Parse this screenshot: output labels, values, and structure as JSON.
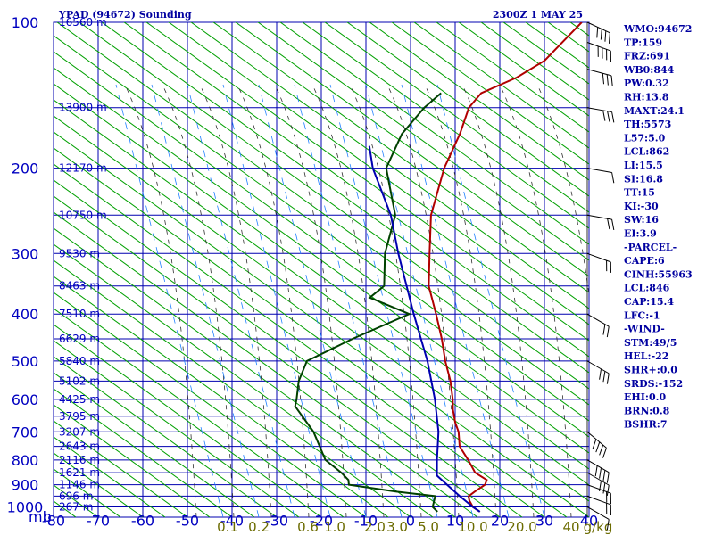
{
  "header": {
    "title": "YPAD (94672) Sounding",
    "datetime": "2300Z  1 MAY 25"
  },
  "chart_data": {
    "type": "line",
    "title": "YPAD (94672) Sounding",
    "yaxis": {
      "unit_label": "mb",
      "pressure_levels": [
        100,
        200,
        300,
        400,
        500,
        600,
        700,
        800,
        900,
        1000
      ],
      "scale": "log",
      "range": [
        100,
        1050
      ]
    },
    "xaxis": {
      "ticks": [
        -80,
        -70,
        -60,
        -50,
        -40,
        -30,
        -20,
        -10,
        0,
        10,
        20,
        30,
        40
      ],
      "range": [
        -80,
        40
      ]
    },
    "height_labels": [
      {
        "label": "16560 m",
        "p": 100
      },
      {
        "label": "13900 m",
        "p": 150
      },
      {
        "label": "12170 m",
        "p": 200
      },
      {
        "label": "10750 m",
        "p": 250
      },
      {
        "label": "9530 m",
        "p": 300
      },
      {
        "label": "8463 m",
        "p": 350
      },
      {
        "label": "7510 m",
        "p": 400
      },
      {
        "label": "6629 m",
        "p": 450
      },
      {
        "label": "5840 m",
        "p": 500
      },
      {
        "label": "5102 m",
        "p": 550
      },
      {
        "label": "4425 m",
        "p": 600
      },
      {
        "label": "3795 m",
        "p": 650
      },
      {
        "label": "3207 m",
        "p": 700
      },
      {
        "label": "2643 m",
        "p": 750
      },
      {
        "label": "2116 m",
        "p": 800
      },
      {
        "label": "1621 m",
        "p": 850
      },
      {
        "label": "1146 m",
        "p": 900
      },
      {
        "label": "696 m",
        "p": 950
      },
      {
        "label": "267 m",
        "p": 1000
      }
    ],
    "mixing_ratio_labels": [
      "0.1",
      "0.2",
      "0.6",
      "1.0",
      "2.0",
      "3.0",
      "5.0",
      "10.0",
      "20.0",
      "40",
      "g/kg"
    ],
    "series": [
      {
        "values": [
          {
            "p": 1023,
            "t": 14.5
          },
          {
            "p": 1000,
            "t": 12
          },
          {
            "p": 970,
            "t": 10
          },
          {
            "p": 950,
            "t": 9
          },
          {
            "p": 930,
            "t": 9.5
          },
          {
            "p": 900,
            "t": 10.5
          },
          {
            "p": 880,
            "t": 10
          },
          {
            "p": 850,
            "t": 6
          },
          {
            "p": 800,
            "t": 2
          },
          {
            "p": 750,
            "t": -2.5
          },
          {
            "p": 700,
            "t": -5.5
          },
          {
            "p": 670,
            "t": -8
          },
          {
            "p": 630,
            "t": -11
          },
          {
            "p": 600,
            "t": -13
          },
          {
            "p": 550,
            "t": -17
          },
          {
            "p": 500,
            "t": -22
          },
          {
            "p": 450,
            "t": -27
          },
          {
            "p": 400,
            "t": -33
          },
          {
            "p": 350,
            "t": -40
          },
          {
            "p": 300,
            "t": -46
          },
          {
            "p": 250,
            "t": -53
          },
          {
            "p": 200,
            "t": -59
          },
          {
            "p": 170,
            "t": -62
          },
          {
            "p": 150,
            "t": -65
          },
          {
            "p": 140,
            "t": -65
          },
          {
            "p": 130,
            "t": -60
          },
          {
            "p": 120,
            "t": -57
          },
          {
            "p": 100,
            "t": -56
          }
        ],
        "color": "#b00000"
      },
      {
        "values": [
          {
            "p": 1023,
            "t": 5
          },
          {
            "p": 1000,
            "t": 3
          },
          {
            "p": 950,
            "t": 1.5
          },
          {
            "p": 930,
            "t": -8
          },
          {
            "p": 900,
            "t": -20
          },
          {
            "p": 880,
            "t": -21
          },
          {
            "p": 850,
            "t": -24
          },
          {
            "p": 800,
            "t": -30
          },
          {
            "p": 700,
            "t": -38
          },
          {
            "p": 620,
            "t": -47
          },
          {
            "p": 600,
            "t": -48
          },
          {
            "p": 550,
            "t": -51
          },
          {
            "p": 500,
            "t": -53
          },
          {
            "p": 450,
            "t": -47
          },
          {
            "p": 400,
            "t": -39
          },
          {
            "p": 370,
            "t": -51
          },
          {
            "p": 350,
            "t": -50
          },
          {
            "p": 300,
            "t": -56
          },
          {
            "p": 250,
            "t": -61
          },
          {
            "p": 200,
            "t": -72
          },
          {
            "p": 170,
            "t": -75
          },
          {
            "p": 150,
            "t": -75
          },
          {
            "p": 140,
            "t": -74
          }
        ],
        "color": "#004000"
      },
      {
        "values": [
          {
            "p": 1023,
            "t": 14.5
          },
          {
            "p": 1000,
            "t": 12
          },
          {
            "p": 950,
            "t": 7
          },
          {
            "p": 900,
            "t": 2
          },
          {
            "p": 862,
            "t": -2
          },
          {
            "p": 800,
            "t": -5
          },
          {
            "p": 700,
            "t": -10
          },
          {
            "p": 600,
            "t": -17
          },
          {
            "p": 500,
            "t": -26
          },
          {
            "p": 400,
            "t": -38
          },
          {
            "p": 300,
            "t": -53
          },
          {
            "p": 250,
            "t": -62
          },
          {
            "p": 200,
            "t": -75
          },
          {
            "p": 180,
            "t": -80
          }
        ],
        "color": "#0000b0"
      }
    ],
    "wind_barbs": [
      {
        "p": 1000,
        "dir": 300,
        "kt": 10
      },
      {
        "p": 950,
        "dir": 290,
        "kt": 15
      },
      {
        "p": 900,
        "dir": 290,
        "kt": 20
      },
      {
        "p": 850,
        "dir": 300,
        "kt": 30
      },
      {
        "p": 800,
        "dir": 300,
        "kt": 35
      },
      {
        "p": 700,
        "dir": 310,
        "kt": 40
      },
      {
        "p": 500,
        "dir": 300,
        "kt": 25
      },
      {
        "p": 400,
        "dir": 300,
        "kt": 20
      },
      {
        "p": 300,
        "dir": 290,
        "kt": 15
      },
      {
        "p": 250,
        "dir": 280,
        "kt": 15
      },
      {
        "p": 200,
        "dir": 280,
        "kt": 10
      },
      {
        "p": 150,
        "dir": 280,
        "kt": 25
      },
      {
        "p": 125,
        "dir": 285,
        "kt": 30
      },
      {
        "p": 110,
        "dir": 290,
        "kt": 35
      },
      {
        "p": 100,
        "dir": 295,
        "kt": 40
      }
    ]
  },
  "indices": [
    "WMO:94672",
    "TP:159",
    "FRZ:691",
    "WB0:844",
    "PW:0.32",
    "RH:13.8",
    "MAXT:24.1",
    "TH:5573",
    "L57:5.0",
    "LCL:862",
    "LI:15.5",
    "SI:16.8",
    "TT:15",
    "KI:-30",
    "SW:16",
    "EI:3.9",
    "-PARCEL-",
    "CAPE:6",
    "CINH:55963",
    "LCL:846",
    "CAP:15.4",
    "LFC:-1",
    "-WIND-",
    "STM:49/5",
    "HEL:-22",
    "SHR+:0.0",
    "SRDS:-152",
    "EHI:0.0",
    "BRN:0.8",
    "BSHR:7"
  ],
  "colors": {
    "grid": "#0000b0",
    "dry_adiabat": "#00a000",
    "moist_adiabat": "#303030",
    "mixing_ratio": "#2080ff",
    "temperature": "#b00000",
    "dewpoint": "#004000",
    "parcel": "#0000b0",
    "text": "#0000a0",
    "mixing_label": "#6b6b00"
  }
}
